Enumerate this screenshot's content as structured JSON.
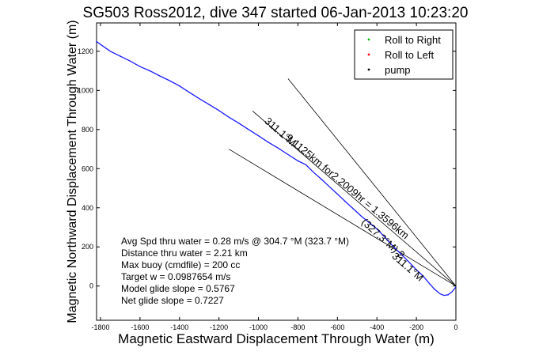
{
  "chart_data": {
    "type": "line",
    "title": "SG503 Ross2012, dive 347 started 06-Jan-2013 10:23:20",
    "xlabel": "Magnetic Eastward Displacement Through Water (m)",
    "ylabel": "Magnetic Northward Displacement Through Water (m)",
    "xlim": [
      -1820,
      0
    ],
    "ylim": [
      -175,
      1345
    ],
    "xticks": [
      -1800,
      -1600,
      -1400,
      -1200,
      -1000,
      -800,
      -600,
      -400,
      -200,
      0
    ],
    "yticks": [
      0,
      200,
      400,
      600,
      800,
      1000,
      1200
    ],
    "grid": false,
    "legend_position": "top-right",
    "legend": [
      {
        "label": "Roll to Right",
        "color": "#00bb00",
        "marker": "."
      },
      {
        "label": "Roll to Left",
        "color": "#ff0000",
        "marker": "."
      },
      {
        "label": "pump",
        "color": "#000000",
        "marker": "."
      }
    ],
    "series": [
      {
        "color": "#1a1aff",
        "x": [
          -1820,
          -1800,
          -1750,
          -1700,
          -1650,
          -1600,
          -1550,
          -1500,
          -1450,
          -1400,
          -1350,
          -1300,
          -1250,
          -1200,
          -1150,
          -1100,
          -1050,
          -1000,
          -950,
          -900,
          -850,
          -800,
          -760,
          -720,
          -680,
          -640,
          -600,
          -560,
          -520,
          -480,
          -440,
          -400,
          -360,
          -320,
          -280,
          -240,
          -200,
          -170,
          -140,
          -110,
          -80,
          -60,
          -40,
          -20,
          0
        ],
        "y": [
          1250,
          1235,
          1200,
          1175,
          1150,
          1122,
          1100,
          1074,
          1050,
          1023,
          990,
          958,
          928,
          897,
          863,
          833,
          800,
          768,
          735,
          705,
          672,
          640,
          620,
          580,
          545,
          507,
          470,
          432,
          395,
          358,
          325,
          292,
          250,
          205,
          165,
          125,
          83,
          55,
          20,
          -15,
          -40,
          -48,
          -45,
          -30,
          -5
        ]
      }
    ],
    "guide_lines": [
      {
        "x": [
          -1030,
          0
        ],
        "y": [
          895,
          0
        ]
      },
      {
        "x": [
          -1150,
          0
        ],
        "y": [
          700,
          0
        ]
      },
      {
        "x": [
          -850,
          0
        ],
        "y": [
          1060,
          0
        ]
      }
    ],
    "rotated_labels": [
      {
        "text": "311.1°M",
        "x": -900,
        "y": 775,
        "angle": 41
      },
      {
        "text": "(327.3°M) 2",
        "x": -380,
        "y": 230,
        "angle": 42
      },
      {
        "text": "9.1125km for2.2009hr = 1.3596km",
        "x": -560,
        "y": 495,
        "angle": 40
      },
      {
        "text": "311.1°M",
        "x": -255,
        "y": 85,
        "angle": 41
      }
    ],
    "stats": [
      "Avg Spd thru water =  0.28 m/s @ 304.7  °M (323.7 °M)",
      "Distance thru water =  2.21 km",
      "Max buoy (cmdfile) = 200 cc",
      "Target w = 0.0987654 m/s",
      "Model glide slope = 0.5767",
      "Net glide slope = 0.7227"
    ]
  }
}
